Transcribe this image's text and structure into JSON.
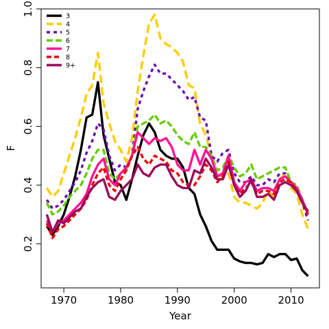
{
  "chart_data": {
    "type": "line",
    "title": "",
    "xlabel": "Year",
    "ylabel": "F",
    "xlim": [
      1966,
      2015
    ],
    "ylim": [
      0.05,
      1.0
    ],
    "xticks": [
      1970,
      1980,
      1990,
      2000,
      2010
    ],
    "yticks": [
      0.2,
      0.4,
      0.6,
      0.8,
      1.0
    ],
    "xtick_labels": [
      "1970",
      "1980",
      "1990",
      "2000",
      "2010"
    ],
    "ytick_labels": [
      "0.2",
      "0.4",
      "0.6",
      "0.8",
      "1.0"
    ],
    "grid": false,
    "legend_position": "top-left",
    "x": [
      1967,
      1968,
      1969,
      1970,
      1971,
      1972,
      1973,
      1974,
      1975,
      1976,
      1977,
      1978,
      1979,
      1980,
      1981,
      1982,
      1983,
      1984,
      1985,
      1986,
      1987,
      1988,
      1989,
      1990,
      1991,
      1992,
      1993,
      1994,
      1995,
      1996,
      1997,
      1998,
      1999,
      2000,
      2001,
      2002,
      2003,
      2004,
      2005,
      2006,
      2007,
      2008,
      2009,
      2010,
      2011,
      2012,
      2013
    ],
    "series": [
      {
        "name": "3",
        "color": "#000000",
        "dash": "solid",
        "values": [
          0.26,
          0.23,
          0.26,
          0.3,
          0.36,
          0.43,
          0.52,
          0.63,
          0.64,
          0.75,
          0.57,
          0.49,
          0.41,
          0.4,
          0.35,
          0.42,
          0.5,
          0.57,
          0.61,
          0.58,
          0.52,
          0.5,
          0.49,
          0.49,
          0.46,
          0.39,
          0.37,
          0.3,
          0.26,
          0.21,
          0.18,
          0.18,
          0.18,
          0.15,
          0.14,
          0.135,
          0.135,
          0.13,
          0.135,
          0.165,
          0.155,
          0.165,
          0.165,
          0.145,
          0.15,
          0.11,
          0.09
        ]
      },
      {
        "name": "4",
        "color": "#ffcc00",
        "dash": "12,6",
        "values": [
          0.39,
          0.36,
          0.38,
          0.44,
          0.5,
          0.56,
          0.63,
          0.71,
          0.74,
          0.85,
          0.68,
          0.61,
          0.55,
          0.52,
          0.48,
          0.56,
          0.72,
          0.84,
          0.95,
          0.98,
          0.9,
          0.88,
          0.87,
          0.85,
          0.82,
          0.74,
          0.73,
          0.61,
          0.57,
          0.5,
          0.43,
          0.43,
          0.44,
          0.36,
          0.34,
          0.34,
          0.33,
          0.32,
          0.34,
          0.38,
          0.36,
          0.42,
          0.44,
          0.39,
          0.37,
          0.3,
          0.25
        ]
      },
      {
        "name": "5",
        "color": "#6a0dad",
        "dash": "5,5",
        "values": [
          0.35,
          0.32,
          0.33,
          0.35,
          0.38,
          0.41,
          0.45,
          0.51,
          0.55,
          0.61,
          0.59,
          0.5,
          0.45,
          0.47,
          0.46,
          0.5,
          0.66,
          0.72,
          0.77,
          0.81,
          0.78,
          0.78,
          0.76,
          0.74,
          0.72,
          0.69,
          0.7,
          0.63,
          0.62,
          0.5,
          0.48,
          0.51,
          0.52,
          0.44,
          0.41,
          0.41,
          0.43,
          0.4,
          0.4,
          0.42,
          0.41,
          0.44,
          0.44,
          0.41,
          0.39,
          0.34,
          0.28
        ]
      },
      {
        "name": "6",
        "color": "#66cc00",
        "dash": "9,4",
        "values": [
          0.34,
          0.3,
          0.31,
          0.33,
          0.36,
          0.38,
          0.4,
          0.44,
          0.49,
          0.52,
          0.52,
          0.44,
          0.42,
          0.44,
          0.45,
          0.5,
          0.6,
          0.61,
          0.62,
          0.64,
          0.61,
          0.62,
          0.6,
          0.57,
          0.55,
          0.54,
          0.58,
          0.53,
          0.53,
          0.5,
          0.45,
          0.46,
          0.5,
          0.46,
          0.43,
          0.44,
          0.47,
          0.42,
          0.43,
          0.44,
          0.45,
          0.46,
          0.46,
          0.41,
          0.4,
          0.35,
          0.3
        ]
      },
      {
        "name": "7",
        "color": "#ff1493",
        "dash": "solid",
        "values": [
          0.28,
          0.24,
          0.27,
          0.28,
          0.3,
          0.32,
          0.34,
          0.37,
          0.43,
          0.47,
          0.49,
          0.42,
          0.4,
          0.44,
          0.46,
          0.5,
          0.58,
          0.56,
          0.54,
          0.56,
          0.55,
          0.56,
          0.53,
          0.47,
          0.45,
          0.45,
          0.52,
          0.47,
          0.52,
          0.49,
          0.43,
          0.44,
          0.5,
          0.41,
          0.38,
          0.41,
          0.42,
          0.38,
          0.39,
          0.39,
          0.38,
          0.42,
          0.43,
          0.41,
          0.39,
          0.35,
          0.3
        ]
      },
      {
        "name": "8",
        "color": "#ee0000",
        "dash": "7,4",
        "values": [
          0.27,
          0.22,
          0.25,
          0.26,
          0.28,
          0.3,
          0.32,
          0.35,
          0.4,
          0.44,
          0.46,
          0.4,
          0.38,
          0.42,
          0.45,
          0.5,
          0.53,
          0.49,
          0.47,
          0.5,
          0.49,
          0.48,
          0.45,
          0.44,
          0.41,
          0.4,
          0.4,
          0.43,
          0.47,
          0.45,
          0.41,
          0.43,
          0.48,
          0.4,
          0.37,
          0.39,
          0.41,
          0.37,
          0.38,
          0.38,
          0.37,
          0.41,
          0.42,
          0.41,
          0.38,
          0.34,
          0.3
        ]
      },
      {
        "name": "9+",
        "color": "#9b0a5c",
        "dash": "solid",
        "values": [
          0.3,
          0.24,
          0.28,
          0.27,
          0.29,
          0.31,
          0.32,
          0.36,
          0.39,
          0.41,
          0.42,
          0.36,
          0.35,
          0.38,
          0.4,
          0.42,
          0.47,
          0.44,
          0.43,
          0.46,
          0.47,
          0.47,
          0.43,
          0.4,
          0.39,
          0.39,
          0.45,
          0.44,
          0.49,
          0.46,
          0.42,
          0.42,
          0.47,
          0.4,
          0.36,
          0.38,
          0.42,
          0.36,
          0.36,
          0.37,
          0.35,
          0.4,
          0.41,
          0.4,
          0.38,
          0.34,
          0.31
        ]
      }
    ]
  }
}
